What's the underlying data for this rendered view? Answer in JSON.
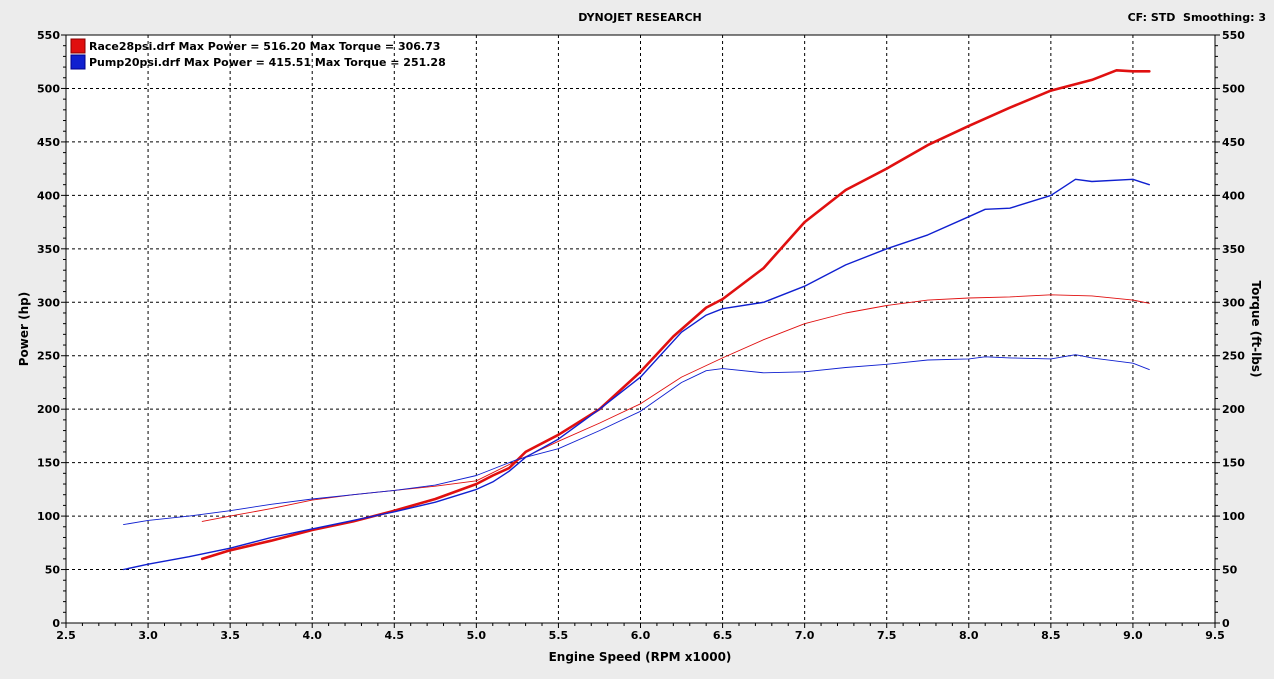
{
  "header": {
    "title": "DYNOJET RESEARCH",
    "settings": "CF: STD  Smoothing: 3"
  },
  "colors": {
    "race": "#e01010",
    "pump": "#1020d0",
    "plot_bg": "#ffffff",
    "page_bg": "#ececec"
  },
  "chart_data": {
    "type": "line",
    "title": "DYNOJET RESEARCH",
    "xlabel": "Engine Speed (RPM x1000)",
    "ylabel": "Power (hp)",
    "y2label": "Torque (ft-lbs)",
    "xlim": [
      2.5,
      9.5
    ],
    "ylim": [
      0,
      550
    ],
    "y2lim": [
      0,
      550
    ],
    "xticks": [
      "2.5",
      "3.0",
      "3.5",
      "4.0",
      "4.5",
      "5.0",
      "5.5",
      "6.0",
      "6.5",
      "7.0",
      "7.5",
      "8.0",
      "8.5",
      "9.0",
      "9.5"
    ],
    "yticks": [
      "0",
      "50",
      "100",
      "150",
      "200",
      "250",
      "300",
      "350",
      "400",
      "450",
      "500",
      "550"
    ],
    "grid": true,
    "legend_position": "top-left",
    "legend": [
      "Race28psi.drf Max Power = 516.20 Max Torque = 306.73",
      "Pump20psi.drf Max Power = 415.51 Max Torque = 251.28"
    ],
    "series": [
      {
        "name": "Race28psi.drf",
        "kind": "power",
        "color": "#e01010",
        "points": [
          [
            3.33,
            60
          ],
          [
            3.5,
            68
          ],
          [
            3.75,
            77
          ],
          [
            4.0,
            87
          ],
          [
            4.25,
            95
          ],
          [
            4.5,
            105
          ],
          [
            4.75,
            116
          ],
          [
            5.0,
            130
          ],
          [
            5.1,
            138
          ],
          [
            5.2,
            145
          ],
          [
            5.3,
            160
          ],
          [
            5.5,
            176
          ],
          [
            5.75,
            200
          ],
          [
            6.0,
            235
          ],
          [
            6.2,
            268
          ],
          [
            6.4,
            295
          ],
          [
            6.5,
            303
          ],
          [
            6.75,
            332
          ],
          [
            7.0,
            375
          ],
          [
            7.25,
            405
          ],
          [
            7.5,
            425
          ],
          [
            7.75,
            447
          ],
          [
            8.0,
            465
          ],
          [
            8.25,
            482
          ],
          [
            8.5,
            498
          ],
          [
            8.75,
            508
          ],
          [
            8.9,
            517
          ],
          [
            9.0,
            516
          ],
          [
            9.1,
            516
          ]
        ]
      },
      {
        "name": "Race28psi.drf",
        "kind": "torque",
        "color": "#e01010",
        "points": [
          [
            3.33,
            95
          ],
          [
            3.5,
            100
          ],
          [
            3.75,
            107
          ],
          [
            4.0,
            115
          ],
          [
            4.25,
            120
          ],
          [
            4.5,
            124
          ],
          [
            4.75,
            128
          ],
          [
            5.0,
            133
          ],
          [
            5.25,
            152
          ],
          [
            5.5,
            170
          ],
          [
            5.75,
            187
          ],
          [
            6.0,
            205
          ],
          [
            6.25,
            230
          ],
          [
            6.5,
            248
          ],
          [
            6.75,
            265
          ],
          [
            7.0,
            280
          ],
          [
            7.25,
            290
          ],
          [
            7.5,
            297
          ],
          [
            7.75,
            302
          ],
          [
            8.0,
            304
          ],
          [
            8.25,
            305
          ],
          [
            8.5,
            307
          ],
          [
            8.75,
            306
          ],
          [
            9.0,
            302
          ],
          [
            9.1,
            299
          ]
        ]
      },
      {
        "name": "Pump20psi.drf",
        "kind": "power",
        "color": "#1020d0",
        "points": [
          [
            2.85,
            50
          ],
          [
            3.0,
            55
          ],
          [
            3.25,
            62
          ],
          [
            3.5,
            70
          ],
          [
            3.75,
            80
          ],
          [
            4.0,
            88
          ],
          [
            4.25,
            96
          ],
          [
            4.5,
            104
          ],
          [
            4.75,
            113
          ],
          [
            5.0,
            125
          ],
          [
            5.1,
            132
          ],
          [
            5.2,
            142
          ],
          [
            5.3,
            155
          ],
          [
            5.5,
            172
          ],
          [
            5.75,
            200
          ],
          [
            6.0,
            230
          ],
          [
            6.25,
            272
          ],
          [
            6.4,
            288
          ],
          [
            6.5,
            294
          ],
          [
            6.75,
            300
          ],
          [
            7.0,
            315
          ],
          [
            7.25,
            335
          ],
          [
            7.5,
            350
          ],
          [
            7.75,
            363
          ],
          [
            8.0,
            380
          ],
          [
            8.1,
            387
          ],
          [
            8.25,
            388
          ],
          [
            8.5,
            400
          ],
          [
            8.65,
            415
          ],
          [
            8.75,
            413
          ],
          [
            9.0,
            415
          ],
          [
            9.1,
            410
          ]
        ]
      },
      {
        "name": "Pump20psi.drf",
        "kind": "torque",
        "color": "#1020d0",
        "points": [
          [
            2.85,
            92
          ],
          [
            3.0,
            96
          ],
          [
            3.25,
            100
          ],
          [
            3.5,
            105
          ],
          [
            3.75,
            111
          ],
          [
            4.0,
            116
          ],
          [
            4.25,
            120
          ],
          [
            4.5,
            124
          ],
          [
            4.75,
            129
          ],
          [
            5.0,
            138
          ],
          [
            5.25,
            153
          ],
          [
            5.5,
            163
          ],
          [
            5.75,
            180
          ],
          [
            6.0,
            198
          ],
          [
            6.25,
            225
          ],
          [
            6.4,
            236
          ],
          [
            6.5,
            238
          ],
          [
            6.75,
            234
          ],
          [
            7.0,
            235
          ],
          [
            7.25,
            239
          ],
          [
            7.5,
            242
          ],
          [
            7.75,
            246
          ],
          [
            8.0,
            247
          ],
          [
            8.1,
            249
          ],
          [
            8.25,
            248
          ],
          [
            8.5,
            247
          ],
          [
            8.65,
            251
          ],
          [
            8.75,
            248
          ],
          [
            9.0,
            243
          ],
          [
            9.1,
            237
          ]
        ]
      }
    ]
  }
}
